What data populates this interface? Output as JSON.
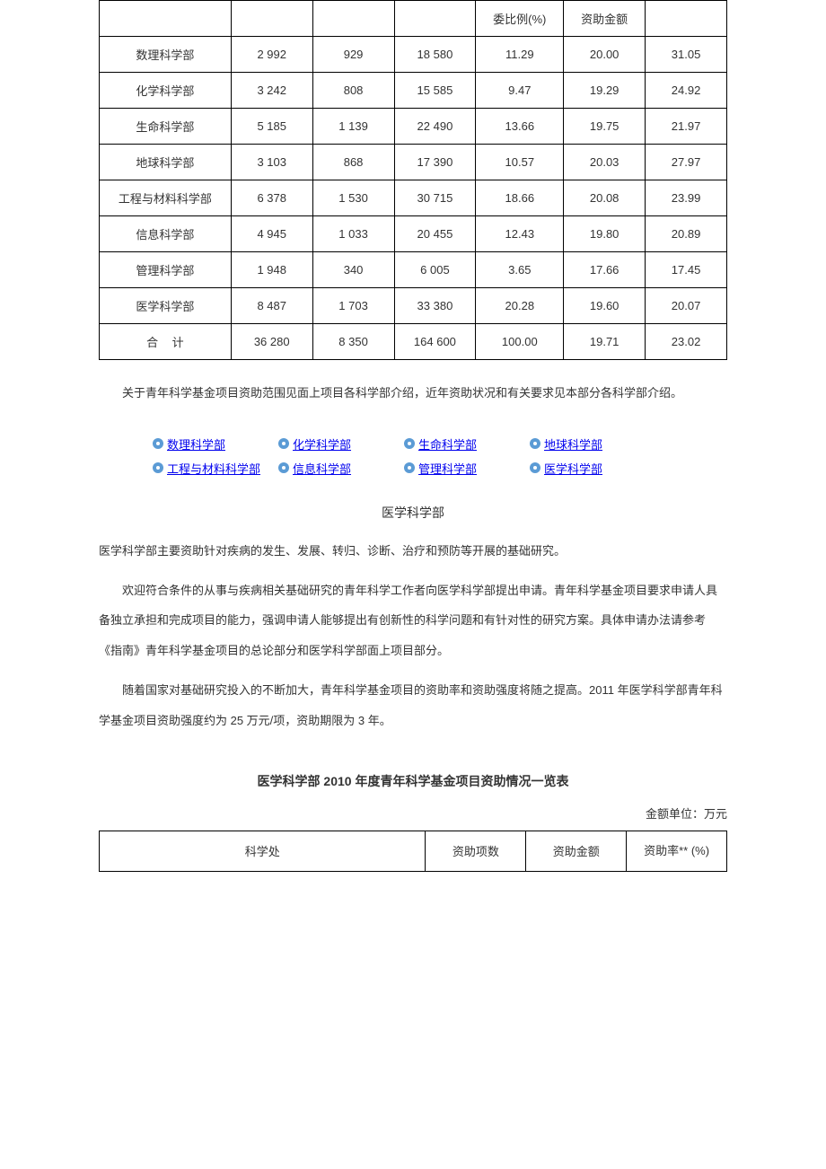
{
  "table1": {
    "header_partial": {
      "c5": "委比例(%)",
      "c6": "资助金额"
    },
    "rows": [
      {
        "c1": "数理科学部",
        "c2": "2 992",
        "c3": "929",
        "c4": "18 580",
        "c5": "11.29",
        "c6": "20.00",
        "c7": "31.05"
      },
      {
        "c1": "化学科学部",
        "c2": "3 242",
        "c3": "808",
        "c4": "15 585",
        "c5": "9.47",
        "c6": "19.29",
        "c7": "24.92"
      },
      {
        "c1": "生命科学部",
        "c2": "5 185",
        "c3": "1 139",
        "c4": "22 490",
        "c5": "13.66",
        "c6": "19.75",
        "c7": "21.97"
      },
      {
        "c1": "地球科学部",
        "c2": "3 103",
        "c3": "868",
        "c4": "17 390",
        "c5": "10.57",
        "c6": "20.03",
        "c7": "27.97"
      },
      {
        "c1": "工程与材料科学部",
        "c2": "6 378",
        "c3": "1 530",
        "c4": "30 715",
        "c5": "18.66",
        "c6": "20.08",
        "c7": "23.99"
      },
      {
        "c1": "信息科学部",
        "c2": "4 945",
        "c3": "1 033",
        "c4": "20 455",
        "c5": "12.43",
        "c6": "19.80",
        "c7": "20.89"
      },
      {
        "c1": "管理科学部",
        "c2": "1 948",
        "c3": "340",
        "c4": "6 005",
        "c5": "3.65",
        "c6": "17.66",
        "c7": "17.45"
      },
      {
        "c1": "医学科学部",
        "c2": "8 487",
        "c3": "1 703",
        "c4": "33 380",
        "c5": "20.28",
        "c6": "19.60",
        "c7": "20.07"
      }
    ],
    "total": {
      "c1": "合计",
      "c2": "36 280",
      "c3": "8 350",
      "c4": "164 600",
      "c5": "100.00",
      "c6": "19.71",
      "c7": "23.02"
    }
  },
  "para_after_table1": "关于青年科学基金项目资助范围见面上项目各科学部介绍，近年资助状况和有关要求见本部分各科学部介绍。",
  "dept_links": {
    "row1": [
      "数理科学部",
      "化学科学部",
      "生命科学部",
      "地球科学部"
    ],
    "row2": [
      "工程与材料科学部",
      "信息科学部",
      "管理科学部",
      "医学科学部"
    ]
  },
  "section2": {
    "title": "医学科学部",
    "p1": "医学科学部主要资助针对疾病的发生、发展、转归、诊断、治疗和预防等开展的基础研究。",
    "p2": "欢迎符合条件的从事与疾病相关基础研究的青年科学工作者向医学科学部提出申请。青年科学基金项目要求申请人具备独立承担和完成项目的能力，强调申请人能够提出有创新性的科学问题和有针对性的研究方案。具体申请办法请参考《指南》青年科学基金项目的总论部分和医学科学部面上项目部分。",
    "p3": "随着国家对基础研究投入的不断加大，青年科学基金项目的资助率和资助强度将随之提高。2011 年医学科学部青年科学基金项目资助强度约为 25 万元/项，资助期限为 3 年。"
  },
  "table2": {
    "title": "医学科学部 2010 年度青年科学基金项目资助情况一览表",
    "unit_note": "金额单位：万元",
    "headers": {
      "h1": "科学处",
      "h2": "资助项数",
      "h3": "资助金额",
      "h4": "资助率**\n(%)"
    }
  },
  "styling": {
    "font_family": "Microsoft YaHei, SimSun, sans-serif",
    "font_size_body": 13,
    "line_height_para": 2.6,
    "border_color": "#000000",
    "bullet_color": "#5b9bd5",
    "background": "#ffffff",
    "text_color": "#333333"
  }
}
